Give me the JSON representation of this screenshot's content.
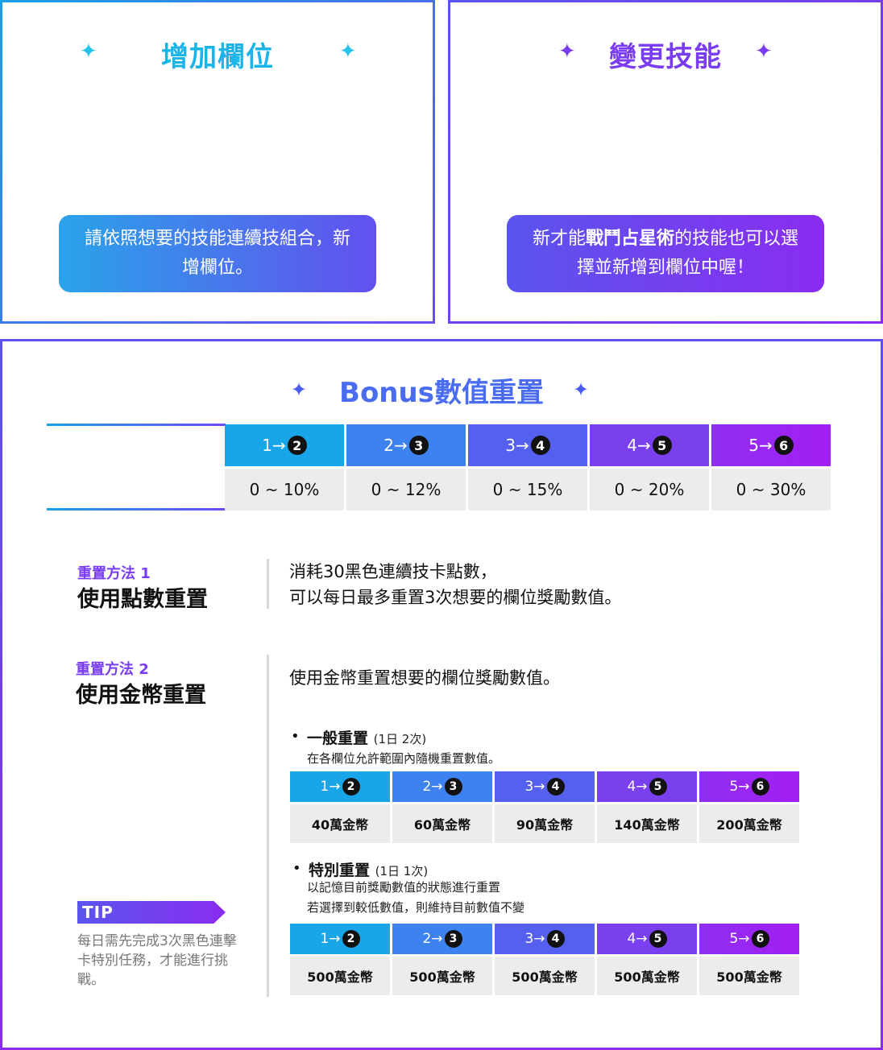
{
  "add_slot": {
    "title": "增加欄位",
    "bubble": "請依照想要的技能連續技組合，新增欄位。"
  },
  "change_skill": {
    "title": "變更技能",
    "bubble_prefix": "新才能",
    "bubble_bold": "戰鬥占星術",
    "bubble_suffix": "的技能也可以選擇並新增到欄位中喔！"
  },
  "bonus": {
    "title": "Bonus數值重置",
    "steps": [
      {
        "from": "1→",
        "to": "2",
        "range": "0 ~ 10%"
      },
      {
        "from": "2→",
        "to": "3",
        "range": "0 ~ 12%"
      },
      {
        "from": "3→",
        "to": "4",
        "range": "0 ~ 15%"
      },
      {
        "from": "4→",
        "to": "5",
        "range": "0 ~ 20%"
      },
      {
        "from": "5→",
        "to": "6",
        "range": "0 ~ 30%"
      }
    ]
  },
  "method1": {
    "label": "重置方法 1",
    "title": "使用點數重置",
    "desc_line1": "消耗30黑色連續技卡點數，",
    "desc_line2": "可以每日最多重置3次想要的欄位獎勵數值。"
  },
  "method2": {
    "label": "重置方法 2",
    "title": "使用金幣重置",
    "desc": "使用金幣重置想要的欄位獎勵數值。",
    "normal": {
      "title": "一般重置",
      "limit": "(1日 2次)",
      "desc": "在各欄位允許範圍內隨機重置數值。",
      "costs": [
        "40萬金幣",
        "60萬金幣",
        "90萬金幣",
        "140萬金幣",
        "200萬金幣"
      ]
    },
    "special": {
      "title": "特別重置",
      "limit": "(1日 1次)",
      "desc_line1": "以記憶目前獎勵數值的狀態進行重置",
      "desc_line2": "若選擇到較低數值，則維持目前數值不變",
      "costs": [
        "500萬金幣",
        "500萬金幣",
        "500萬金幣",
        "500萬金幣",
        "500萬金幣"
      ]
    }
  },
  "tip": {
    "tag": "TIP",
    "text": "每日需先完成3次黑色連擊卡特別任務，才能進行挑戰。"
  },
  "colors": {
    "cyan": "#19a6e8",
    "blue": "#3d82ee",
    "indigo": "#5560ee",
    "violet": "#7a40ee",
    "purple": "#9030f0"
  },
  "icons": {
    "sparkle": "✦",
    "bullet": "•"
  }
}
